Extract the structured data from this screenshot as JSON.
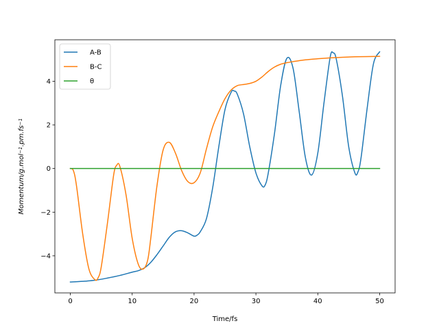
{
  "chart_data": {
    "type": "line",
    "title": "",
    "xlabel": "Time/fs",
    "ylabel_base": "Momentum/g.mol",
    "ylabel_parts": [
      {
        "text": "Momentum/g.mol",
        "sup": false
      },
      {
        "text": "−1",
        "sup": true
      },
      {
        "text": ".pm.fs",
        "sup": false
      },
      {
        "text": "−1",
        "sup": true
      }
    ],
    "xlim": [
      -2.5,
      52.5
    ],
    "ylim": [
      -5.7,
      5.9
    ],
    "xticks": [
      0,
      10,
      20,
      30,
      40,
      50
    ],
    "xtick_labels": [
      "0",
      "10",
      "20",
      "30",
      "40",
      "50"
    ],
    "yticks": [
      -4,
      -2,
      0,
      2,
      4
    ],
    "ytick_labels": [
      "−4",
      "−2",
      "0",
      "2",
      "4"
    ],
    "grid": false,
    "legend_position": "top-left",
    "series": [
      {
        "name": "A-B",
        "color": "#1f77b4",
        "x": [
          0,
          2,
          4,
          6,
          8,
          10,
          11,
          12,
          13,
          14,
          15,
          16,
          17,
          18,
          19,
          20,
          20.5,
          21,
          22,
          23,
          24,
          25,
          26,
          26.5,
          27,
          28,
          29,
          30,
          31,
          31.5,
          32,
          33,
          34,
          35,
          36,
          37,
          38,
          39,
          40,
          41,
          42,
          42.5,
          43,
          44,
          45,
          46,
          46.5,
          47,
          48,
          49,
          50
        ],
        "y": [
          -5.2,
          -5.17,
          -5.12,
          -5.02,
          -4.9,
          -4.75,
          -4.68,
          -4.55,
          -4.3,
          -3.95,
          -3.55,
          -3.15,
          -2.9,
          -2.85,
          -2.95,
          -3.1,
          -3.05,
          -2.9,
          -2.3,
          -0.9,
          1.0,
          2.7,
          3.5,
          3.55,
          3.4,
          2.5,
          1.0,
          -0.2,
          -0.8,
          -0.75,
          -0.2,
          1.6,
          3.8,
          5.05,
          4.6,
          2.6,
          0.5,
          -0.3,
          0.7,
          3.0,
          5.1,
          5.3,
          5.0,
          3.3,
          1.0,
          -0.2,
          -0.15,
          0.5,
          2.8,
          4.8,
          5.35
        ]
      },
      {
        "name": "B-C",
        "color": "#ff7f0e",
        "x": [
          0,
          0.5,
          1,
          2,
          3,
          4,
          4.5,
          5,
          6,
          7,
          7.5,
          8,
          9,
          10,
          11,
          11.8,
          12.5,
          13,
          14,
          15,
          16,
          17,
          18,
          19,
          20,
          21,
          22,
          23,
          24,
          25,
          26,
          27,
          28,
          29,
          30,
          31,
          32,
          33,
          34,
          35,
          36,
          38,
          40,
          42,
          44,
          46,
          48,
          50
        ],
        "y": [
          0.0,
          -0.1,
          -0.8,
          -3.0,
          -4.6,
          -5.1,
          -5.0,
          -4.5,
          -2.5,
          -0.3,
          0.15,
          0.1,
          -1.2,
          -3.2,
          -4.4,
          -4.6,
          -4.2,
          -3.2,
          -0.8,
          0.85,
          1.2,
          0.7,
          -0.1,
          -0.6,
          -0.65,
          -0.2,
          0.9,
          1.9,
          2.6,
          3.2,
          3.6,
          3.8,
          3.85,
          3.9,
          4.0,
          4.2,
          4.45,
          4.65,
          4.78,
          4.85,
          4.9,
          4.98,
          5.03,
          5.07,
          5.1,
          5.12,
          5.13,
          5.14
        ]
      },
      {
        "name": "θ",
        "color": "#2ca02c",
        "x": [
          0,
          50
        ],
        "y": [
          0,
          0
        ]
      }
    ]
  }
}
